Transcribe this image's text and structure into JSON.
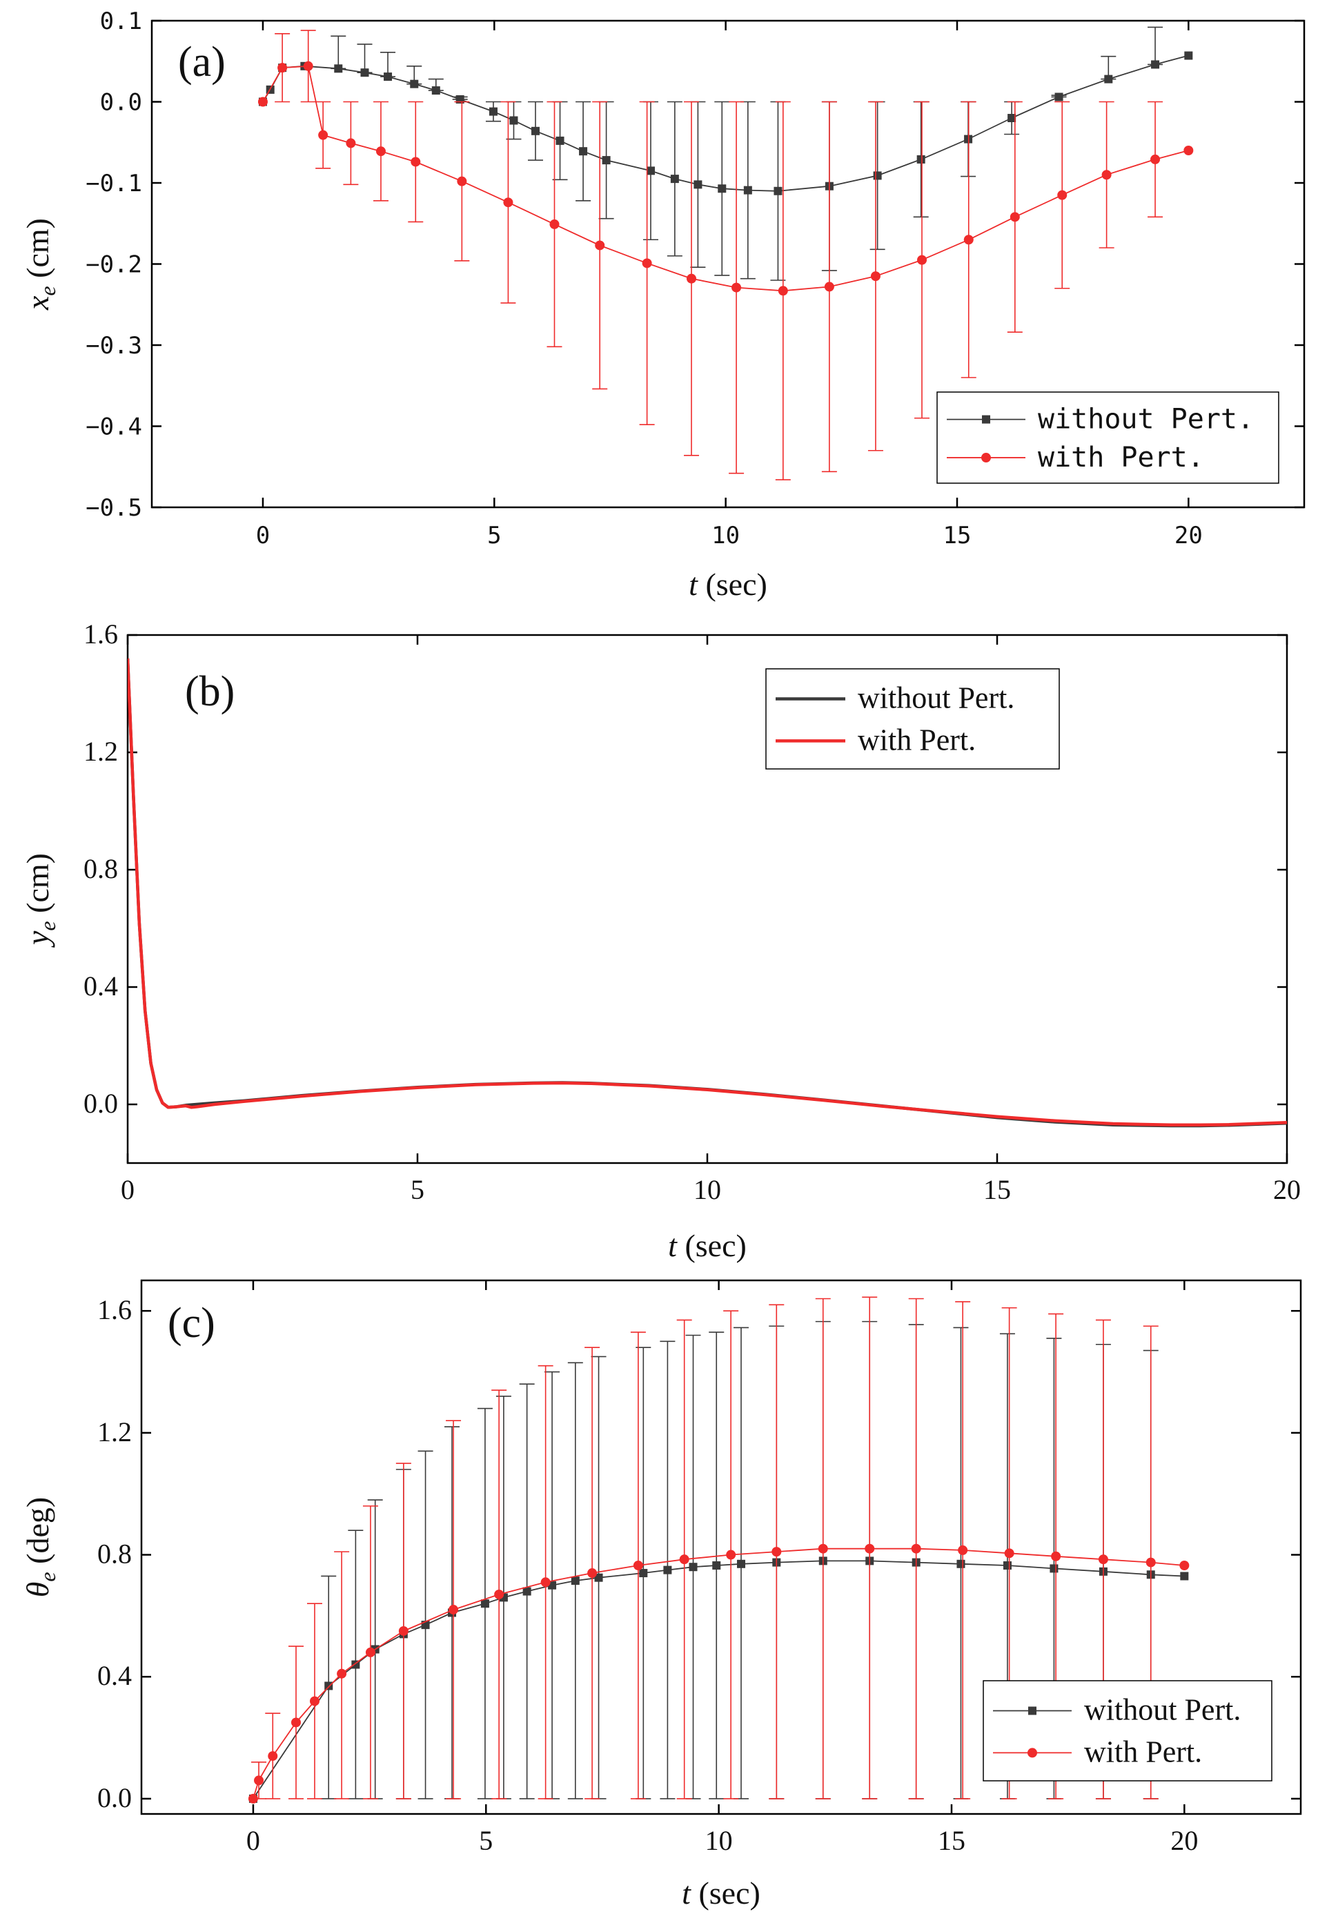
{
  "colors": {
    "without": "#3a3a3a",
    "with": "#ef2b2b",
    "axis": "#000000"
  },
  "chart_data": [
    {
      "panel": "(a)",
      "type": "line",
      "xlabel": "t (sec)",
      "xlabel_var": "t",
      "xlabel_unit": "(sec)",
      "ylabel_var": "x",
      "ylabel_sub": "e",
      "ylabel_unit": "(cm)",
      "xlim": [
        -2.4,
        22.5
      ],
      "ylim": [
        -0.5,
        0.1
      ],
      "xticks": [
        0,
        5,
        10,
        15,
        20
      ],
      "xtick_labels": [
        "0",
        "5",
        "10",
        "15",
        "20"
      ],
      "yticks": [
        0.1,
        0.0,
        -0.1,
        -0.2,
        -0.3,
        -0.4,
        -0.5
      ],
      "ytick_labels": [
        "0.1",
        "0.0",
        "−0.1",
        "−0.2",
        "−0.3",
        "−0.4",
        "−0.5"
      ],
      "legend": [
        "without Pert.",
        "with Pert."
      ],
      "legend_position": "bottom-right",
      "series": [
        {
          "name": "without Pert.",
          "marker": "square",
          "x": [
            0,
            0.16,
            0.42,
            0.9,
            1.63,
            2.2,
            2.7,
            3.27,
            3.74,
            4.26,
            4.98,
            5.42,
            5.89,
            6.42,
            6.92,
            7.42,
            8.38,
            8.9,
            9.4,
            9.92,
            10.48,
            11.13,
            12.24,
            13.28,
            14.22,
            15.24,
            16.18,
            17.2,
            18.27,
            19.28,
            20.0
          ],
          "y": [
            0.0,
            0.015,
            0.042,
            0.044,
            0.041,
            0.036,
            0.031,
            0.022,
            0.014,
            0.003,
            -0.012,
            -0.023,
            -0.036,
            -0.048,
            -0.061,
            -0.072,
            -0.085,
            -0.095,
            -0.102,
            -0.107,
            -0.109,
            -0.11,
            -0.104,
            -0.091,
            -0.071,
            -0.046,
            -0.02,
            0.006,
            0.028,
            0.046,
            0.057
          ],
          "err_low": [
            0,
            0,
            0,
            0,
            0,
            0,
            0,
            0,
            0,
            0,
            0.012,
            0.023,
            0.036,
            0.048,
            0.061,
            0.072,
            0.085,
            0.095,
            0.102,
            0.107,
            0.109,
            0.11,
            0.104,
            0.091,
            0.071,
            0.046,
            0.02,
            0,
            0,
            0,
            0
          ],
          "err_high": [
            0,
            0,
            0,
            0,
            0.04,
            0.035,
            0.03,
            0.022,
            0.014,
            0.003,
            0.012,
            0.023,
            0.036,
            0.048,
            0.061,
            0.072,
            0.085,
            0.095,
            0.102,
            0.107,
            0.109,
            0.11,
            0.104,
            0.091,
            0.071,
            0.046,
            0.02,
            0.002,
            0.028,
            0.046,
            0
          ]
        },
        {
          "name": "with Pert.",
          "marker": "circle",
          "x": [
            0,
            0.42,
            0.98,
            1.3,
            1.9,
            2.55,
            3.3,
            4.3,
            5.3,
            6.3,
            7.28,
            8.3,
            9.26,
            10.23,
            11.24,
            12.24,
            13.24,
            14.24,
            15.25,
            16.25,
            17.27,
            18.23,
            19.28,
            20.0
          ],
          "y": [
            0.0,
            0.042,
            0.044,
            -0.041,
            -0.051,
            -0.061,
            -0.074,
            -0.098,
            -0.124,
            -0.151,
            -0.177,
            -0.199,
            -0.218,
            -0.229,
            -0.233,
            -0.228,
            -0.215,
            -0.195,
            -0.17,
            -0.142,
            -0.115,
            -0.09,
            -0.071,
            -0.06
          ],
          "err_low": [
            0,
            0.042,
            0.044,
            0.041,
            0.051,
            0.061,
            0.074,
            0.098,
            0.124,
            0.151,
            0.177,
            0.199,
            0.218,
            0.229,
            0.233,
            0.228,
            0.215,
            0.195,
            0.17,
            0.142,
            0.115,
            0.09,
            0.071,
            0
          ],
          "err_high": [
            0,
            0.042,
            0.044,
            0.041,
            0.051,
            0.061,
            0.074,
            0.098,
            0.124,
            0.151,
            0.177,
            0.199,
            0.218,
            0.229,
            0.233,
            0.228,
            0.215,
            0.195,
            0.17,
            0.142,
            0.115,
            0.09,
            0.071,
            0
          ]
        }
      ]
    },
    {
      "panel": "(b)",
      "type": "line",
      "xlabel": "t (sec)",
      "xlabel_var": "t",
      "xlabel_unit": "(sec)",
      "ylabel_var": "y",
      "ylabel_sub": "e",
      "ylabel_unit": "(cm)",
      "xlim": [
        0,
        20
      ],
      "ylim": [
        -0.2,
        1.6
      ],
      "xticks": [
        0,
        5,
        10,
        15,
        20
      ],
      "xtick_labels": [
        "0",
        "5",
        "10",
        "15",
        "20"
      ],
      "yticks": [
        1.6,
        1.2,
        0.8,
        0.4,
        0.0
      ],
      "ytick_labels": [
        "1.6",
        "1.2",
        "0.8",
        "0.4",
        "0.0"
      ],
      "legend": [
        "without Pert.",
        "with Pert."
      ],
      "legend_position": "top-right",
      "series": [
        {
          "name": "without Pert.",
          "x": [
            0,
            0.1,
            0.2,
            0.3,
            0.4,
            0.5,
            0.6,
            0.7,
            0.85,
            1.0,
            1.5,
            2,
            3,
            4,
            5,
            6,
            7,
            7.5,
            8,
            9,
            10,
            11,
            12,
            13,
            14,
            15,
            16,
            17,
            18,
            18.5,
            19,
            20
          ],
          "y": [
            1.52,
            1.05,
            0.62,
            0.32,
            0.14,
            0.05,
            0.005,
            -0.01,
            -0.008,
            -0.003,
            0.005,
            0.012,
            0.03,
            0.045,
            0.058,
            0.068,
            0.073,
            0.074,
            0.072,
            0.064,
            0.051,
            0.034,
            0.015,
            -0.005,
            -0.025,
            -0.045,
            -0.06,
            -0.07,
            -0.073,
            -0.073,
            -0.071,
            -0.064
          ]
        },
        {
          "name": "with Pert.",
          "x": [
            0,
            0.1,
            0.2,
            0.3,
            0.4,
            0.5,
            0.6,
            0.7,
            0.85,
            1.0,
            1.1,
            1.2,
            1.5,
            2,
            3,
            4,
            5,
            6,
            7,
            7.5,
            8,
            9,
            10,
            11,
            12,
            13,
            14,
            15,
            16,
            17,
            18,
            18.5,
            19,
            20
          ],
          "y": [
            1.52,
            1.05,
            0.62,
            0.32,
            0.14,
            0.05,
            0.005,
            -0.01,
            -0.008,
            -0.005,
            -0.01,
            -0.008,
            0.0,
            0.01,
            0.028,
            0.044,
            0.057,
            0.067,
            0.072,
            0.073,
            0.071,
            0.063,
            0.05,
            0.033,
            0.014,
            -0.006,
            -0.024,
            -0.042,
            -0.056,
            -0.066,
            -0.07,
            -0.07,
            -0.069,
            -0.062
          ]
        }
      ]
    },
    {
      "panel": "(c)",
      "type": "line",
      "xlabel": "t (sec)",
      "xlabel_var": "t",
      "xlabel_unit": "(sec)",
      "ylabel_var": "θ",
      "ylabel_sub": "e",
      "ylabel_unit": "(deg)",
      "xlim": [
        -2.4,
        22.5
      ],
      "ylim": [
        -0.05,
        1.7
      ],
      "xticks": [
        0,
        5,
        10,
        15,
        20
      ],
      "xtick_labels": [
        "0",
        "5",
        "10",
        "15",
        "20"
      ],
      "yticks": [
        1.6,
        1.2,
        0.8,
        0.4,
        0.0
      ],
      "ytick_labels": [
        "1.6",
        "1.2",
        "0.8",
        "0.4",
        "0.0"
      ],
      "legend": [
        "without Pert.",
        "with Pert."
      ],
      "legend_position": "bottom-right",
      "series": [
        {
          "name": "without Pert.",
          "marker": "square",
          "x": [
            0,
            1.62,
            2.2,
            2.62,
            3.23,
            3.7,
            4.27,
            4.98,
            5.38,
            5.88,
            6.42,
            6.92,
            7.42,
            8.38,
            8.9,
            9.45,
            9.95,
            10.48,
            11.24,
            12.24,
            13.24,
            14.24,
            15.2,
            16.2,
            17.2,
            18.26,
            19.28,
            20.0
          ],
          "y": [
            0.0,
            0.37,
            0.44,
            0.49,
            0.54,
            0.57,
            0.61,
            0.64,
            0.66,
            0.68,
            0.7,
            0.715,
            0.725,
            0.74,
            0.75,
            0.76,
            0.765,
            0.77,
            0.775,
            0.78,
            0.78,
            0.775,
            0.77,
            0.765,
            0.755,
            0.745,
            0.735,
            0.73
          ],
          "err_low": [
            0,
            0.37,
            0.44,
            0.49,
            0.54,
            0.57,
            0.61,
            0.64,
            0.66,
            0.68,
            0.7,
            0.715,
            0.725,
            0.74,
            0.75,
            0.76,
            0.765,
            0.77,
            0.775,
            0.78,
            0.78,
            0.775,
            0.77,
            0.765,
            0.755,
            0.745,
            0.735,
            0
          ],
          "err_high": [
            0,
            0.36,
            0.44,
            0.49,
            0.54,
            0.57,
            0.61,
            0.64,
            0.66,
            0.68,
            0.7,
            0.715,
            0.725,
            0.74,
            0.75,
            0.76,
            0.765,
            0.775,
            0.775,
            0.785,
            0.785,
            0.78,
            0.775,
            0.76,
            0.755,
            0.745,
            0.735,
            0
          ]
        },
        {
          "name": "with Pert.",
          "marker": "circle",
          "x": [
            0,
            0.12,
            0.42,
            0.92,
            1.32,
            1.9,
            2.52,
            3.23,
            4.3,
            5.28,
            6.28,
            7.28,
            8.27,
            9.26,
            10.26,
            11.24,
            12.24,
            13.24,
            14.24,
            15.24,
            16.24,
            17.24,
            18.26,
            19.28,
            20.0
          ],
          "y": [
            0.0,
            0.06,
            0.14,
            0.25,
            0.32,
            0.41,
            0.48,
            0.55,
            0.62,
            0.67,
            0.71,
            0.74,
            0.765,
            0.785,
            0.8,
            0.81,
            0.82,
            0.82,
            0.82,
            0.815,
            0.805,
            0.795,
            0.785,
            0.775,
            0.765
          ],
          "err_low": [
            0,
            0.06,
            0.14,
            0.25,
            0.32,
            0.41,
            0.48,
            0.55,
            0.62,
            0.67,
            0.71,
            0.74,
            0.765,
            0.785,
            0.8,
            0.81,
            0.82,
            0.82,
            0.82,
            0.815,
            0.805,
            0.795,
            0.785,
            0.775,
            0
          ],
          "err_high": [
            0,
            0.06,
            0.14,
            0.25,
            0.32,
            0.4,
            0.48,
            0.55,
            0.62,
            0.67,
            0.71,
            0.74,
            0.765,
            0.785,
            0.8,
            0.81,
            0.82,
            0.825,
            0.82,
            0.815,
            0.805,
            0.795,
            0.785,
            0.775,
            0
          ]
        }
      ]
    }
  ]
}
